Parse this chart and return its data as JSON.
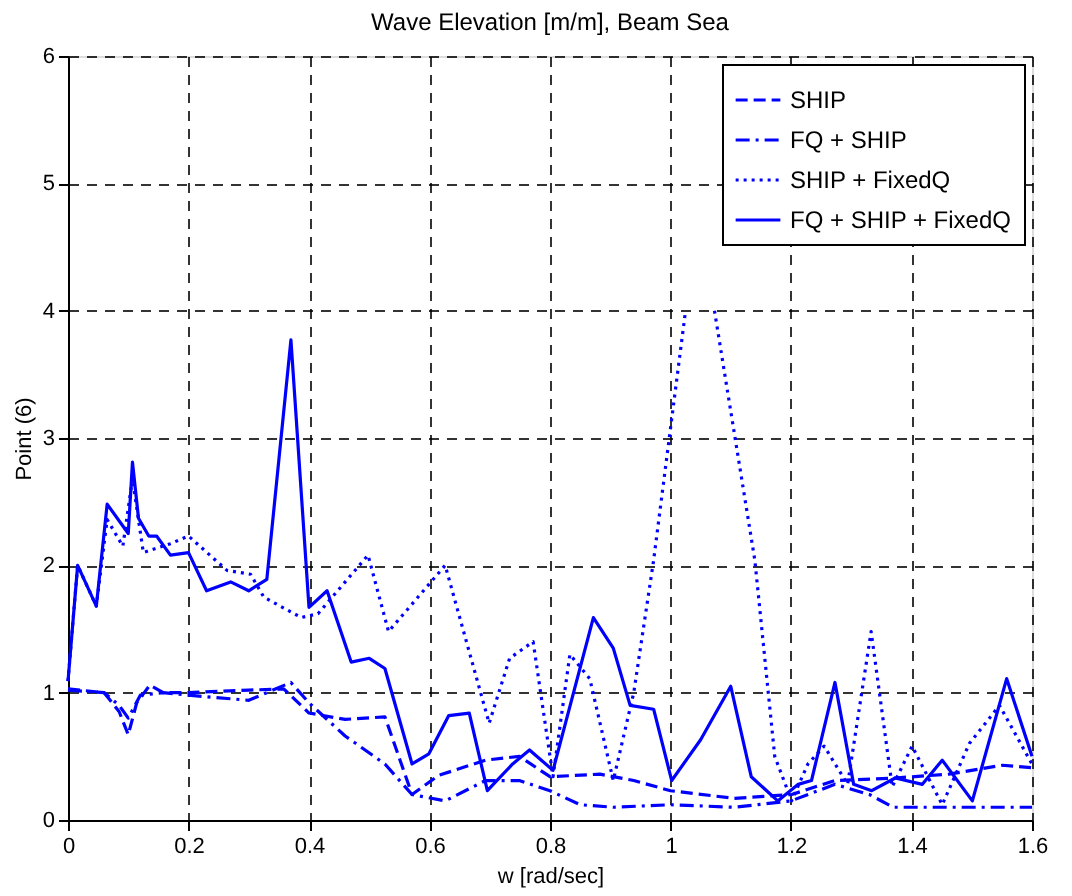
{
  "chart_data": {
    "type": "line",
    "title": "Wave Elevation [m/m], Beam Sea",
    "xlabel": "w [rad/sec]",
    "ylabel": "Point (6)",
    "xlim": [
      0,
      1.6
    ],
    "ylim": [
      0,
      6
    ],
    "xticks": [
      0,
      0.2,
      0.4,
      0.6,
      0.8,
      1,
      1.2,
      1.4,
      1.6
    ],
    "yticks": [
      0,
      1,
      2,
      3,
      4,
      5,
      6
    ],
    "grid": true,
    "legend": "top right",
    "marker": "none",
    "series": [
      {
        "name": "SHIP",
        "color": "#0000ff",
        "line_style": "dashed",
        "x": [
          0,
          0.06,
          0.085,
          0.1,
          0.114,
          0.136,
          0.158,
          0.2,
          0.3,
          0.358,
          0.4,
          0.46,
          0.526,
          0.571,
          0.615,
          0.693,
          0.749,
          0.8,
          0.883,
          0.939,
          1.0,
          1.106,
          1.201,
          1.273,
          1.373,
          1.462,
          1.551,
          1.6
        ],
        "values": [
          1.03,
          1.0,
          0.85,
          0.67,
          0.92,
          1.06,
          1.0,
          1.0,
          1.02,
          1.03,
          0.84,
          0.79,
          0.81,
          0.2,
          0.35,
          0.47,
          0.5,
          0.34,
          0.36,
          0.31,
          0.23,
          0.17,
          0.2,
          0.31,
          0.33,
          0.36,
          0.43,
          0.41
        ]
      },
      {
        "name": "FQ + SHIP",
        "color": "#0000ff",
        "line_style": "dashdot",
        "x": [
          0,
          0.06,
          0.085,
          0.1,
          0.12,
          0.158,
          0.2,
          0.3,
          0.37,
          0.4,
          0.46,
          0.526,
          0.571,
          0.626,
          0.693,
          0.749,
          0.8,
          0.85,
          0.905,
          1.0,
          1.106,
          1.2,
          1.273,
          1.33,
          1.37,
          1.45,
          1.6
        ],
        "values": [
          1.02,
          1.0,
          0.9,
          0.8,
          0.98,
          1.0,
          0.98,
          0.94,
          1.08,
          0.92,
          0.66,
          0.44,
          0.2,
          0.15,
          0.31,
          0.31,
          0.23,
          0.12,
          0.1,
          0.12,
          0.1,
          0.15,
          0.28,
          0.2,
          0.1,
          0.1,
          0.1
        ]
      },
      {
        "name": "SHIP + FixedQ",
        "color": "#0000ff",
        "line_style": "dotted",
        "x": [
          0,
          0.016,
          0.047,
          0.065,
          0.091,
          0.107,
          0.125,
          0.17,
          0.2,
          0.264,
          0.303,
          0.325,
          0.387,
          0.415,
          0.498,
          0.532,
          0.626,
          0.699,
          0.733,
          0.772,
          0.805,
          0.833,
          0.866,
          0.905,
          0.939,
          0.972,
          1.025,
          1.05,
          1.073,
          1.14,
          1.173,
          1.201,
          1.228,
          1.255,
          1.294,
          1.333,
          1.368,
          1.401,
          1.451,
          1.496,
          1.546,
          1.6
        ],
        "values": [
          1.09,
          2.0,
          1.68,
          2.36,
          2.15,
          2.68,
          2.1,
          2.17,
          2.23,
          1.96,
          1.93,
          1.75,
          1.59,
          1.62,
          2.08,
          1.48,
          2.0,
          0.76,
          1.27,
          1.4,
          0.34,
          1.3,
          1.11,
          0.31,
          1.0,
          2.04,
          4.0,
          null,
          4.0,
          2.04,
          0.5,
          0.15,
          0.44,
          0.58,
          0.28,
          1.48,
          0.26,
          0.58,
          0.12,
          0.6,
          0.9,
          0.44
        ]
      },
      {
        "name": "FQ + SHIP + FixedQ",
        "color": "#0000ff",
        "line_style": "solid",
        "x": [
          0,
          0.016,
          0.047,
          0.065,
          0.1,
          0.107,
          0.117,
          0.134,
          0.147,
          0.17,
          0.2,
          0.23,
          0.27,
          0.3,
          0.33,
          0.37,
          0.4,
          0.43,
          0.47,
          0.5,
          0.526,
          0.571,
          0.599,
          0.632,
          0.666,
          0.696,
          0.738,
          0.766,
          0.805,
          0.872,
          0.905,
          0.933,
          0.972,
          1.002,
          1.05,
          1.1,
          1.134,
          1.178,
          1.212,
          1.234,
          1.273,
          1.304,
          1.334,
          1.373,
          1.418,
          1.451,
          1.501,
          1.558,
          1.6
        ],
        "values": [
          1.09,
          2.0,
          1.68,
          2.48,
          2.25,
          2.81,
          2.37,
          2.23,
          2.23,
          2.08,
          2.1,
          1.8,
          1.87,
          1.8,
          1.89,
          3.77,
          1.67,
          1.8,
          1.24,
          1.27,
          1.19,
          0.44,
          0.52,
          0.82,
          0.84,
          0.23,
          0.44,
          0.55,
          0.39,
          1.59,
          1.35,
          0.9,
          0.87,
          0.31,
          0.63,
          1.05,
          0.34,
          0.15,
          0.28,
          0.31,
          1.08,
          0.28,
          0.23,
          0.33,
          0.28,
          0.47,
          0.15,
          1.11,
          0.5
        ]
      }
    ]
  }
}
